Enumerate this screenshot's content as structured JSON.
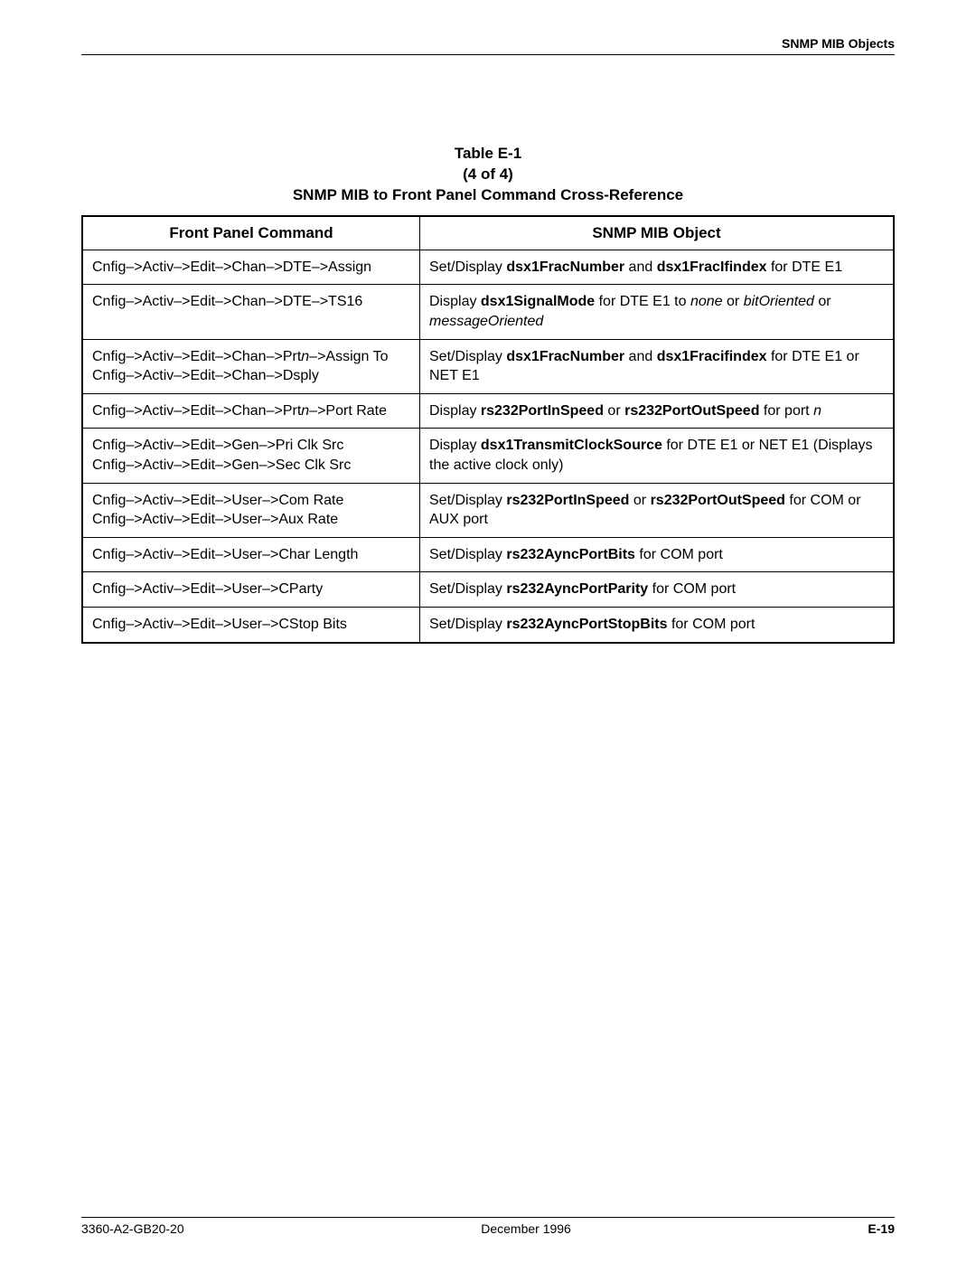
{
  "header": {
    "section": "SNMP MIB Objects"
  },
  "caption": {
    "line1": "Table E-1",
    "line2": "(4 of 4)",
    "line3": "SNMP MIB to Front Panel Command Cross-Reference"
  },
  "columns": {
    "col1": "Front Panel Command",
    "col2": "SNMP MIB Object"
  },
  "rows": [
    {
      "cmd": [
        [
          "plain",
          "Cnfig–>Activ–>Edit–>Chan–>DTE–>Assign"
        ]
      ],
      "obj": [
        [
          "plain",
          "Set/Display "
        ],
        [
          "bold",
          "dsx1FracNumber"
        ],
        [
          "plain",
          " and "
        ],
        [
          "bold",
          "dsx1FracIfindex"
        ],
        [
          "plain",
          " for DTE E1"
        ]
      ]
    },
    {
      "cmd": [
        [
          "plain",
          "Cnfig–>Activ–>Edit–>Chan–>DTE–>TS16"
        ]
      ],
      "obj": [
        [
          "plain",
          "Display "
        ],
        [
          "bold",
          "dsx1SignalMode"
        ],
        [
          "plain",
          " for DTE E1 to "
        ],
        [
          "italic",
          "none"
        ],
        [
          "plain",
          " or "
        ],
        [
          "italic",
          "bitOriented"
        ],
        [
          "plain",
          " or "
        ],
        [
          "italic",
          "messageOriented"
        ]
      ]
    },
    {
      "cmd": [
        [
          "plain",
          "Cnfig–>Activ–>Edit–>Chan–>Prt"
        ],
        [
          "italic",
          "n"
        ],
        [
          "plain",
          "–>Assign To"
        ],
        [
          "br",
          ""
        ],
        [
          "plain",
          "Cnfig–>Activ–>Edit–>Chan–>Dsply"
        ]
      ],
      "obj": [
        [
          "plain",
          "Set/Display "
        ],
        [
          "bold",
          "dsx1FracNumber"
        ],
        [
          "plain",
          " and "
        ],
        [
          "bold",
          "dsx1Fracifindex"
        ],
        [
          "plain",
          " for DTE E1 or NET E1"
        ]
      ]
    },
    {
      "cmd": [
        [
          "plain",
          "Cnfig–>Activ–>Edit–>Chan–>Prt"
        ],
        [
          "italic",
          "n"
        ],
        [
          "plain",
          "–>Port Rate"
        ]
      ],
      "obj": [
        [
          "plain",
          "Display "
        ],
        [
          "bold",
          "rs232PortInSpeed"
        ],
        [
          "plain",
          " or "
        ],
        [
          "bold",
          "rs232PortOutSpeed"
        ],
        [
          "plain",
          " for port "
        ],
        [
          "italic",
          "n"
        ]
      ]
    },
    {
      "cmd": [
        [
          "plain",
          "Cnfig–>Activ–>Edit–>Gen–>Pri Clk Src"
        ],
        [
          "br",
          ""
        ],
        [
          "plain",
          "Cnfig–>Activ–>Edit–>Gen–>Sec Clk Src"
        ]
      ],
      "obj": [
        [
          "plain",
          "Display "
        ],
        [
          "bold",
          "dsx1TransmitClockSource"
        ],
        [
          "plain",
          " for DTE E1 or NET E1 (Displays the active clock only)"
        ]
      ]
    },
    {
      "cmd": [
        [
          "plain",
          "Cnfig–>Activ–>Edit–>User–>Com Rate"
        ],
        [
          "br",
          ""
        ],
        [
          "plain",
          "Cnfig–>Activ–>Edit–>User–>Aux Rate"
        ]
      ],
      "obj": [
        [
          "plain",
          "Set/Display "
        ],
        [
          "bold",
          "rs232PortInSpeed"
        ],
        [
          "plain",
          " or "
        ],
        [
          "bold",
          "rs232PortOutSpeed"
        ],
        [
          "plain",
          " for COM or AUX port"
        ]
      ]
    },
    {
      "cmd": [
        [
          "plain",
          "Cnfig–>Activ–>Edit–>User–>Char Length"
        ]
      ],
      "obj": [
        [
          "plain",
          "Set/Display "
        ],
        [
          "bold",
          "rs232AyncPortBits"
        ],
        [
          "plain",
          " for COM port"
        ]
      ]
    },
    {
      "cmd": [
        [
          "plain",
          "Cnfig–>Activ–>Edit–>User–>CParty"
        ]
      ],
      "obj": [
        [
          "plain",
          "Set/Display "
        ],
        [
          "bold",
          "rs232AyncPortParity"
        ],
        [
          "plain",
          " for COM port"
        ]
      ]
    },
    {
      "cmd": [
        [
          "plain",
          "Cnfig–>Activ–>Edit–>User–>CStop Bits"
        ]
      ],
      "obj": [
        [
          "plain",
          "Set/Display "
        ],
        [
          "bold",
          "rs232AyncPortStopBits"
        ],
        [
          "plain",
          " for COM port"
        ]
      ]
    }
  ],
  "footer": {
    "left": "3360-A2-GB20-20",
    "center": "December 1996",
    "right": "E-19"
  }
}
